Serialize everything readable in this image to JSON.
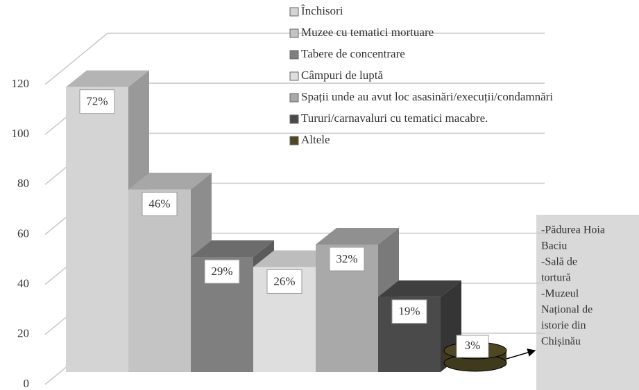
{
  "chart_data": {
    "type": "bar3d",
    "categories": [
      "Închisori",
      "Muzee cu tematici mortuare",
      "Tabere de concentrare",
      "Câmpuri de luptă",
      "Spații unde au avut loc asasinări/execuții/condamnări",
      "Tururi/carnavaluri cu tematici macabre.",
      "Altele"
    ],
    "values": [
      114,
      73,
      46,
      42,
      51,
      30,
      5
    ],
    "value_labels": [
      "72%",
      "46%",
      "29%",
      "26%",
      "32%",
      "19%",
      "3%"
    ],
    "colors": [
      "#d4d4d4",
      "#c4c4c4",
      "#7f7f7f",
      "#dedede",
      "#a9a9a9",
      "#4a4a4a",
      "#4f4724"
    ],
    "ylim": [
      0,
      120
    ],
    "yticks": [
      0,
      20,
      40,
      60,
      80,
      100,
      120
    ],
    "grid": true,
    "annotation": [
      "-Pădurea Hoia",
      "Baciu",
      "-Sală de",
      "tortură",
      "-Muzeul",
      "Național de",
      "istorie din",
      "Chișinău"
    ]
  }
}
